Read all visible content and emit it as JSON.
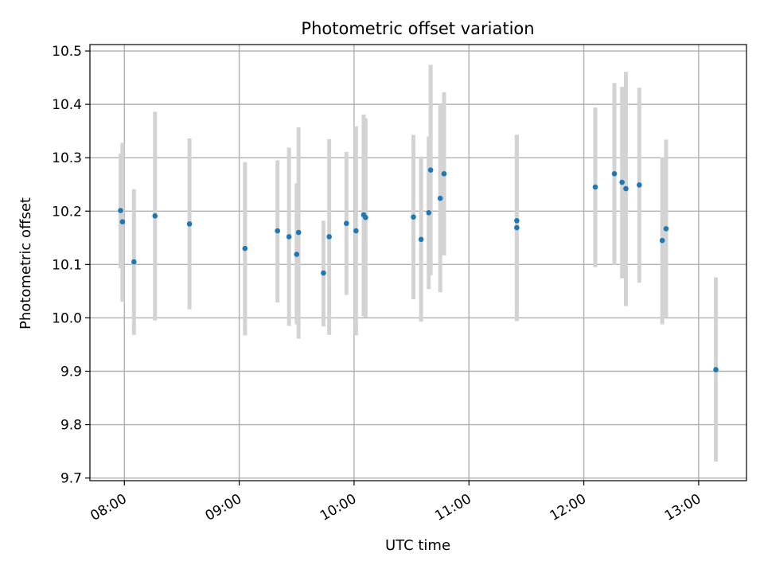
{
  "chart_data": {
    "type": "scatter",
    "title": "Photometric offset variation",
    "xlabel": "UTC time",
    "ylabel": "Photometric offset",
    "xlim": [
      "07:42",
      "13:25"
    ],
    "ylim": [
      9.695,
      10.512
    ],
    "grid": true,
    "x_ticks": [
      "08:00",
      "09:00",
      "10:00",
      "11:00",
      "12:00",
      "13:00"
    ],
    "y_ticks": [
      "9.7",
      "9.8",
      "9.9",
      "10.0",
      "10.1",
      "10.2",
      "10.3",
      "10.4",
      "10.5"
    ],
    "colors": {
      "marker": "#1f77b4",
      "errorbar": "#d3d3d3",
      "grid": "#b0b0b0"
    },
    "points": [
      {
        "x": "07:58",
        "y": 10.201,
        "lo": 10.093,
        "hi": 10.308
      },
      {
        "x": "07:59",
        "y": 10.18,
        "lo": 10.03,
        "hi": 10.328
      },
      {
        "x": "08:05",
        "y": 10.105,
        "lo": 9.968,
        "hi": 10.241
      },
      {
        "x": "08:16",
        "y": 10.191,
        "lo": 9.995,
        "hi": 10.386
      },
      {
        "x": "08:34",
        "y": 10.176,
        "lo": 10.016,
        "hi": 10.336
      },
      {
        "x": "09:03",
        "y": 10.13,
        "lo": 9.967,
        "hi": 10.292
      },
      {
        "x": "09:20",
        "y": 10.163,
        "lo": 10.029,
        "hi": 10.295
      },
      {
        "x": "09:26",
        "y": 10.152,
        "lo": 9.985,
        "hi": 10.319
      },
      {
        "x": "09:30",
        "y": 10.119,
        "lo": 9.988,
        "hi": 10.252
      },
      {
        "x": "09:31",
        "y": 10.16,
        "lo": 9.961,
        "hi": 10.357
      },
      {
        "x": "09:44",
        "y": 10.084,
        "lo": 9.984,
        "hi": 10.182
      },
      {
        "x": "09:47",
        "y": 10.152,
        "lo": 9.968,
        "hi": 10.335
      },
      {
        "x": "09:56",
        "y": 10.177,
        "lo": 10.043,
        "hi": 10.311
      },
      {
        "x": "10:01",
        "y": 10.163,
        "lo": 9.967,
        "hi": 10.359
      },
      {
        "x": "10:05",
        "y": 10.193,
        "lo": 10.003,
        "hi": 10.381
      },
      {
        "x": "10:06",
        "y": 10.188,
        "lo": 10.001,
        "hi": 10.374
      },
      {
        "x": "10:31",
        "y": 10.189,
        "lo": 10.035,
        "hi": 10.343
      },
      {
        "x": "10:35",
        "y": 10.147,
        "lo": 9.993,
        "hi": 10.302
      },
      {
        "x": "10:39",
        "y": 10.197,
        "lo": 10.054,
        "hi": 10.34
      },
      {
        "x": "10:40",
        "y": 10.277,
        "lo": 10.08,
        "hi": 10.474
      },
      {
        "x": "10:45",
        "y": 10.224,
        "lo": 10.048,
        "hi": 10.4
      },
      {
        "x": "10:47",
        "y": 10.27,
        "lo": 10.117,
        "hi": 10.423
      },
      {
        "x": "11:25",
        "y": 10.182,
        "lo": 10.02,
        "hi": 10.343
      },
      {
        "x": "11:25",
        "y": 10.169,
        "lo": 9.994,
        "hi": 10.343
      },
      {
        "x": "12:06",
        "y": 10.245,
        "lo": 10.095,
        "hi": 10.394
      },
      {
        "x": "12:16",
        "y": 10.27,
        "lo": 10.099,
        "hi": 10.44
      },
      {
        "x": "12:20",
        "y": 10.254,
        "lo": 10.074,
        "hi": 10.433
      },
      {
        "x": "12:22",
        "y": 10.242,
        "lo": 10.022,
        "hi": 10.461
      },
      {
        "x": "12:29",
        "y": 10.249,
        "lo": 10.066,
        "hi": 10.431
      },
      {
        "x": "12:41",
        "y": 10.145,
        "lo": 9.988,
        "hi": 10.301
      },
      {
        "x": "12:43",
        "y": 10.167,
        "lo": 10.0,
        "hi": 10.334
      },
      {
        "x": "13:09",
        "y": 9.903,
        "lo": 9.731,
        "hi": 10.076
      }
    ]
  }
}
